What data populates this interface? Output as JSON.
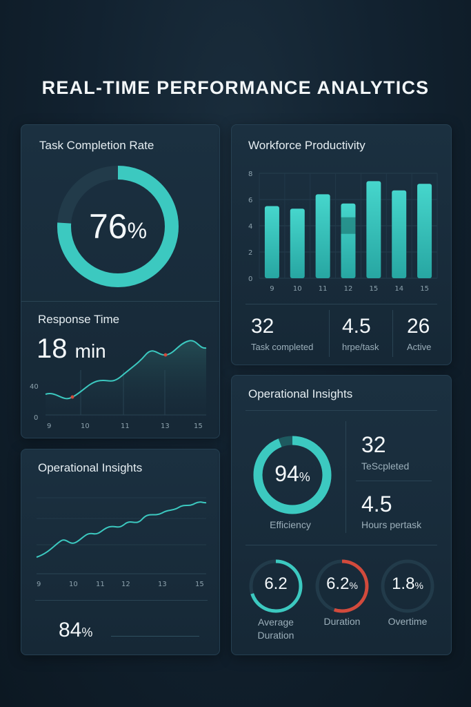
{
  "page": {
    "title": "REAL-TIME PERFORMANCE ANALYTICS"
  },
  "colors": {
    "accent": "#3cc9c0",
    "accent_dark": "#1e6e6e",
    "track": "#223b4a",
    "warn": "#d24a3c"
  },
  "task_completion": {
    "title": "Task Completion Rate",
    "value": "76",
    "unit": "%",
    "fraction": 0.76
  },
  "response_time": {
    "title": "Response Time",
    "value": "18",
    "unit": "min",
    "y_ticks": [
      "40",
      "0"
    ],
    "x_ticks": [
      "9",
      "10",
      "11",
      "13",
      "15"
    ]
  },
  "productivity": {
    "title": "Workforce Productivity",
    "stats": [
      {
        "value": "32",
        "label": "Task completed"
      },
      {
        "value": "4.5",
        "label": "hrpe/task"
      },
      {
        "value": "26",
        "label": "Active"
      }
    ]
  },
  "insights_left": {
    "title": "Operational Insights",
    "value": "84",
    "unit": "%",
    "x_ticks": [
      "9",
      "10",
      "11",
      "12",
      "13",
      "15"
    ]
  },
  "insights_right": {
    "title": "Operational Insights",
    "efficiency": {
      "value": "94",
      "unit": "%",
      "label": "Efficiency",
      "fraction": 0.94
    },
    "stats": [
      {
        "value": "32",
        "label": "TeScpleted"
      },
      {
        "value": "4.5",
        "label": "Hours pertask"
      }
    ],
    "rings": [
      {
        "value": "6.2",
        "unit": "",
        "label_line1": "Average",
        "label_line2": "Duration",
        "fraction": 0.7,
        "color": "#3cc9c0"
      },
      {
        "value": "6.2",
        "unit": "%",
        "label_line1": "Duration",
        "label_line2": "",
        "fraction": 0.55,
        "color": "#d24a3c"
      },
      {
        "value": "1.8",
        "unit": "%",
        "label_line1": "Overtime",
        "label_line2": "",
        "fraction": 0.0,
        "color": "#3cc9c0"
      }
    ]
  },
  "chart_data": [
    {
      "type": "bar",
      "title": "Workforce Productivity",
      "categories": [
        "9",
        "10",
        "11",
        "12",
        "15",
        "14",
        "15"
      ],
      "values": [
        5.5,
        5.3,
        6.4,
        5.7,
        7.4,
        6.7,
        7.2
      ],
      "y_ticks": [
        "8",
        "6",
        "4",
        "2",
        "0"
      ],
      "ylim": [
        0,
        8
      ],
      "grid": true
    },
    {
      "type": "line",
      "title": "Response Time",
      "x": [
        9,
        15
      ],
      "ylim": [
        0,
        40
      ],
      "trend": "rising"
    }
  ]
}
